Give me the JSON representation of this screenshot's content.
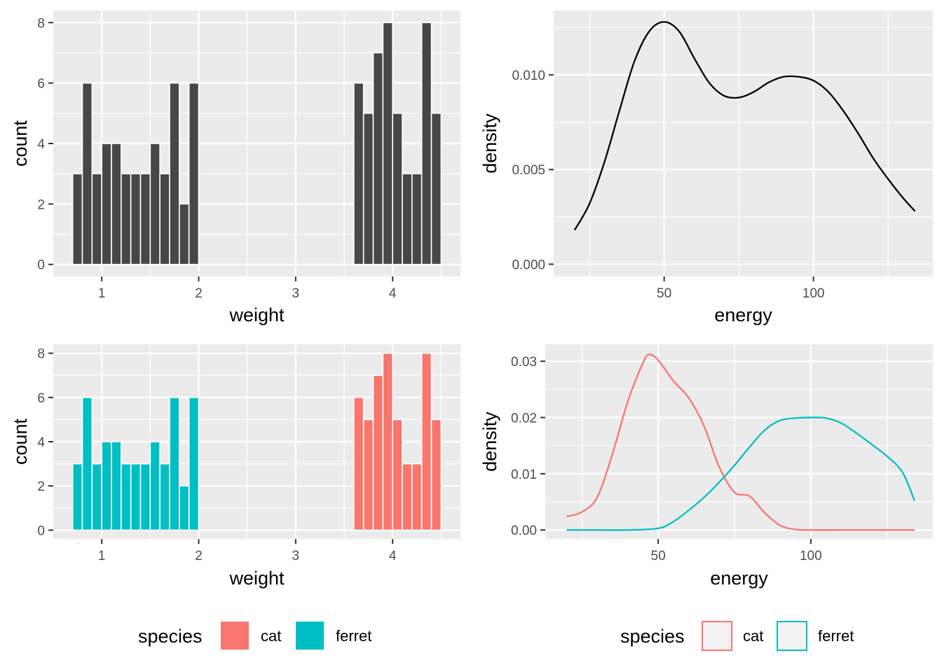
{
  "chart_data": [
    {
      "type": "bar",
      "panel": "top-left",
      "xlabel": "weight",
      "ylabel": "count",
      "xlim": [
        0.5,
        4.7
      ],
      "ylim": [
        -0.4,
        8.4
      ],
      "xticks": [
        1,
        2,
        3,
        4
      ],
      "yticks": [
        0,
        2,
        4,
        6,
        8
      ],
      "bin_width": 0.1,
      "bins": [
        {
          "x": 0.75,
          "count": 3
        },
        {
          "x": 0.85,
          "count": 6
        },
        {
          "x": 0.95,
          "count": 3
        },
        {
          "x": 1.05,
          "count": 4
        },
        {
          "x": 1.15,
          "count": 4
        },
        {
          "x": 1.25,
          "count": 3
        },
        {
          "x": 1.35,
          "count": 3
        },
        {
          "x": 1.45,
          "count": 3
        },
        {
          "x": 1.55,
          "count": 4
        },
        {
          "x": 1.65,
          "count": 3
        },
        {
          "x": 1.75,
          "count": 6
        },
        {
          "x": 1.85,
          "count": 2
        },
        {
          "x": 1.95,
          "count": 6
        },
        {
          "x": 3.65,
          "count": 6
        },
        {
          "x": 3.75,
          "count": 5
        },
        {
          "x": 3.85,
          "count": 7
        },
        {
          "x": 3.95,
          "count": 8
        },
        {
          "x": 4.05,
          "count": 5
        },
        {
          "x": 4.15,
          "count": 3
        },
        {
          "x": 4.25,
          "count": 3
        },
        {
          "x": 4.35,
          "count": 8
        },
        {
          "x": 4.45,
          "count": 5
        }
      ],
      "bar_color": "#474747",
      "grid": true
    },
    {
      "type": "line",
      "panel": "top-right",
      "xlabel": "energy",
      "ylabel": "density",
      "xlim": [
        13,
        140
      ],
      "ylim": [
        -0.00065,
        0.0134
      ],
      "xticks": [
        50,
        100
      ],
      "yticks": [
        0.0,
        0.005,
        0.01
      ],
      "ytick_labels": [
        "0.000",
        "0.005",
        "0.010"
      ],
      "x": [
        20,
        25,
        30,
        35,
        40,
        45,
        50,
        55,
        60,
        65,
        70,
        75,
        80,
        85,
        90,
        95,
        100,
        105,
        110,
        115,
        120,
        125,
        130,
        134
      ],
      "y": [
        0.0018,
        0.0032,
        0.0054,
        0.0081,
        0.0107,
        0.0123,
        0.0128,
        0.0123,
        0.0109,
        0.0096,
        0.0089,
        0.0088,
        0.0091,
        0.0096,
        0.0099,
        0.0099,
        0.0097,
        0.0091,
        0.0081,
        0.0069,
        0.0056,
        0.0045,
        0.0035,
        0.0028
      ],
      "line_color": "#000000",
      "grid": true
    },
    {
      "type": "bar",
      "panel": "bottom-left",
      "xlabel": "weight",
      "ylabel": "count",
      "xlim": [
        0.5,
        4.7
      ],
      "ylim": [
        -0.4,
        8.4
      ],
      "xticks": [
        1,
        2,
        3,
        4
      ],
      "yticks": [
        0,
        2,
        4,
        6,
        8
      ],
      "bin_width": 0.1,
      "bins": [
        {
          "x": 0.75,
          "count": 3,
          "species": "ferret"
        },
        {
          "x": 0.85,
          "count": 6,
          "species": "ferret"
        },
        {
          "x": 0.95,
          "count": 3,
          "species": "ferret"
        },
        {
          "x": 1.05,
          "count": 4,
          "species": "ferret"
        },
        {
          "x": 1.15,
          "count": 4,
          "species": "ferret"
        },
        {
          "x": 1.25,
          "count": 3,
          "species": "ferret"
        },
        {
          "x": 1.35,
          "count": 3,
          "species": "ferret"
        },
        {
          "x": 1.45,
          "count": 3,
          "species": "ferret"
        },
        {
          "x": 1.55,
          "count": 4,
          "species": "ferret"
        },
        {
          "x": 1.65,
          "count": 3,
          "species": "ferret"
        },
        {
          "x": 1.75,
          "count": 6,
          "species": "ferret"
        },
        {
          "x": 1.85,
          "count": 2,
          "species": "ferret"
        },
        {
          "x": 1.95,
          "count": 6,
          "species": "ferret"
        },
        {
          "x": 3.65,
          "count": 6,
          "species": "cat"
        },
        {
          "x": 3.75,
          "count": 5,
          "species": "cat"
        },
        {
          "x": 3.85,
          "count": 7,
          "species": "cat"
        },
        {
          "x": 3.95,
          "count": 8,
          "species": "cat"
        },
        {
          "x": 4.05,
          "count": 5,
          "species": "cat"
        },
        {
          "x": 4.15,
          "count": 3,
          "species": "cat"
        },
        {
          "x": 4.25,
          "count": 3,
          "species": "cat"
        },
        {
          "x": 4.35,
          "count": 8,
          "species": "cat"
        },
        {
          "x": 4.45,
          "count": 5,
          "species": "cat"
        }
      ],
      "grid": true,
      "legend": {
        "title": "species",
        "placement": "bottom",
        "style": "fill",
        "entries": [
          "cat",
          "ferret"
        ]
      }
    },
    {
      "type": "line",
      "panel": "bottom-right",
      "xlabel": "energy",
      "ylabel": "density",
      "xlim": [
        13,
        140
      ],
      "ylim": [
        -0.0016,
        0.033
      ],
      "xticks": [
        50,
        100
      ],
      "yticks": [
        0.0,
        0.01,
        0.02,
        0.03
      ],
      "ytick_labels": [
        "0.00",
        "0.01",
        "0.02",
        "0.03"
      ],
      "series": [
        {
          "name": "cat",
          "x": [
            20,
            25,
            30,
            35,
            40,
            45,
            47,
            50,
            55,
            60,
            65,
            70,
            75,
            80,
            85,
            90,
            95,
            100,
            110,
            120,
            134
          ],
          "y": [
            0.0024,
            0.0032,
            0.0058,
            0.0135,
            0.0228,
            0.0297,
            0.0312,
            0.0302,
            0.0265,
            0.0235,
            0.0185,
            0.0112,
            0.0067,
            0.006,
            0.003,
            0.0008,
            0.0001,
            0.0,
            0.0,
            0.0,
            0.0
          ]
        },
        {
          "name": "ferret",
          "x": [
            20,
            30,
            40,
            50,
            55,
            60,
            65,
            70,
            75,
            80,
            85,
            90,
            95,
            100,
            105,
            110,
            115,
            120,
            125,
            130,
            134
          ],
          "y": [
            0.0,
            0.0,
            0.0,
            0.0003,
            0.0015,
            0.0035,
            0.0058,
            0.0085,
            0.0115,
            0.0148,
            0.0178,
            0.0195,
            0.0199,
            0.02,
            0.0199,
            0.019,
            0.0172,
            0.0152,
            0.0131,
            0.0103,
            0.0052
          ]
        }
      ],
      "grid": true,
      "legend": {
        "title": "species",
        "placement": "bottom",
        "style": "outline",
        "entries": [
          "cat",
          "ferret"
        ]
      }
    }
  ],
  "colors": {
    "cat": "#F8766D",
    "ferret": "#00BFC4",
    "panel_bg": "#EBEBEB",
    "grid": "#FFFFFF"
  },
  "legends": {
    "left": {
      "title": "species",
      "cat_label": "cat",
      "ferret_label": "ferret"
    },
    "right": {
      "title": "species",
      "cat_label": "cat",
      "ferret_label": "ferret"
    }
  }
}
